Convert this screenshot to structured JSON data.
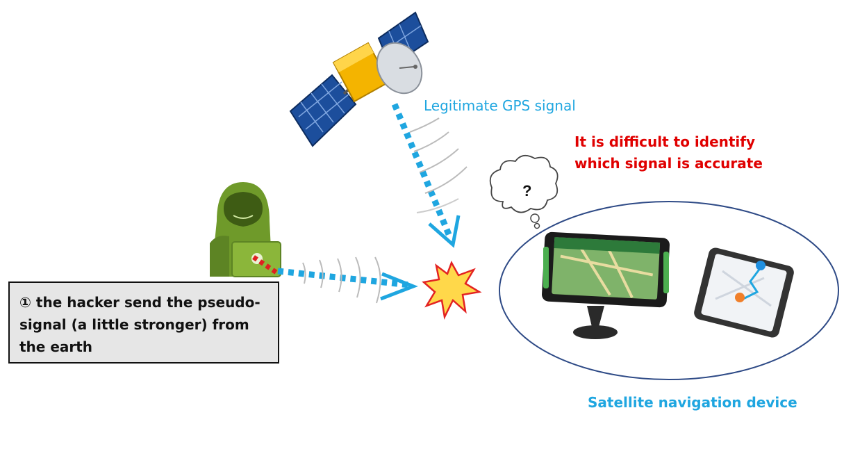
{
  "labels": {
    "legit_signal": "Legitimate GPS signal",
    "warning": "It is difficult to identify which signal is accurate",
    "device": "Satellite navigation device",
    "question_mark": "?"
  },
  "callout": {
    "text": "① the hacker send the pseudo-signal (a little stronger) from the earth"
  },
  "icons": [
    "satellite-icon",
    "hacker-icon",
    "laptop-icon",
    "collision-burst-icon",
    "thought-cloud-icon",
    "gps-navigator-icon",
    "smartphone-map-icon"
  ],
  "colors": {
    "signal_blue": "#1fa6e0",
    "warning_red": "#e00000",
    "hacker_green": "#6f9a2a",
    "burst_yellow": "#ffd84a",
    "burst_red": "#e32222",
    "ellipse_stroke": "#2e4a86"
  }
}
